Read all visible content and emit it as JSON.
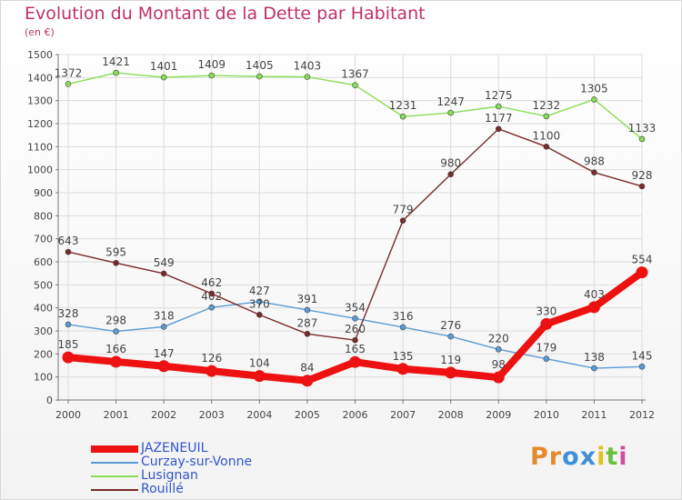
{
  "title": "Evolution du Montant de la Dette par Habitant",
  "unit": "(en €)",
  "logo": {
    "letters": [
      "P",
      "r",
      "o",
      "x",
      "i",
      "t",
      "i"
    ],
    "colors": [
      "#e68a2e",
      "#e68a2e",
      "#3f8fd6",
      "#3f8fd6",
      "#e3c21a",
      "#6cbf3b",
      "#d14da1"
    ]
  },
  "chart_data": {
    "type": "line",
    "title": "Evolution du Montant de la Dette par Habitant",
    "ylabel": "(en €)",
    "xlabel": "",
    "ylim": [
      0,
      1500
    ],
    "yticks": [
      0,
      100,
      200,
      300,
      400,
      500,
      600,
      700,
      800,
      900,
      1000,
      1100,
      1200,
      1300,
      1400,
      1500
    ],
    "x": [
      "2000",
      "2001",
      "2002",
      "2003",
      "2004",
      "2005",
      "2006",
      "2007",
      "2008",
      "2009",
      "2010",
      "2011",
      "2012"
    ],
    "grid": true,
    "legend_position": "bottom-left",
    "series": [
      {
        "name": "JAZENEUIL",
        "color": "#ee1111",
        "emphasis": true,
        "values": [
          185,
          166,
          147,
          126,
          104,
          84,
          165,
          135,
          119,
          98,
          330,
          403,
          554
        ]
      },
      {
        "name": "Curzay-sur-Vonne",
        "color": "#5b9bd5",
        "emphasis": false,
        "values": [
          328,
          298,
          318,
          402,
          427,
          391,
          354,
          316,
          276,
          220,
          179,
          138,
          145
        ]
      },
      {
        "name": "Lusignan",
        "color": "#88dd55",
        "emphasis": false,
        "values": [
          1372,
          1421,
          1401,
          1409,
          1405,
          1403,
          1367,
          1231,
          1247,
          1275,
          1232,
          1305,
          1133
        ]
      },
      {
        "name": "Rouillé",
        "color": "#7a2a2a",
        "emphasis": false,
        "values": [
          643,
          595,
          549,
          462,
          370,
          287,
          260,
          779,
          980,
          1177,
          1100,
          988,
          928
        ]
      }
    ]
  }
}
